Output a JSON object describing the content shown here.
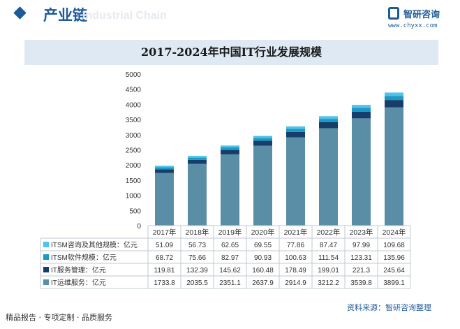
{
  "header": {
    "title": "产业链",
    "watermark": "Industrial Chain",
    "logo_name": "智研咨询",
    "logo_url": "www.chyxx.com"
  },
  "colors": {
    "brand": "#1e5a96",
    "title_band": "#dfe9f3",
    "series": [
      "#4fc3e8",
      "#1e98c6",
      "#173e6b",
      "#5a8ea6"
    ]
  },
  "chart_data": {
    "type": "bar",
    "stacked": true,
    "title": "2017-2024年中国IT行业发展规模",
    "categories": [
      "2017年",
      "2018年",
      "2019年",
      "2020年",
      "2021年",
      "2022年",
      "2023年",
      "2024年"
    ],
    "ylim": [
      0,
      5000
    ],
    "yticks": [
      0,
      500,
      1000,
      1500,
      2000,
      2500,
      3000,
      3500,
      4000,
      4500,
      5000
    ],
    "grid": false,
    "legend": "table-below",
    "series": [
      {
        "name": "ITSM咨询及其他规模：亿元",
        "values": [
          51.09,
          56.73,
          62.65,
          69.55,
          77.86,
          87.47,
          97.99,
          109.68
        ],
        "labels": [
          "51.09",
          "56.73",
          "62.65",
          "69.55",
          "77.86",
          "87.47",
          "97.99",
          "109.68"
        ]
      },
      {
        "name": "ITSM软件规模：亿元",
        "values": [
          68.72,
          75.66,
          82.97,
          90.93,
          100.63,
          111.54,
          123.31,
          135.96
        ],
        "labels": [
          "68.72",
          "75.66",
          "82.97",
          "90.93",
          "100.63",
          "111.54",
          "123.31",
          "135.96"
        ]
      },
      {
        "name": "IT服务管理：亿元",
        "values": [
          119.81,
          132.39,
          145.62,
          160.48,
          178.49,
          199.01,
          221.3,
          245.64
        ],
        "labels": [
          "119.81",
          "132.39",
          "145.62",
          "160.48",
          "178.49",
          "199.01",
          "221.3",
          "245.64"
        ]
      },
      {
        "name": "IT运维服务：亿元",
        "values": [
          1733.8,
          2035.5,
          2351.1,
          2637.9,
          2914.9,
          3212.2,
          3539.8,
          3899.1
        ],
        "labels": [
          "1733.8",
          "2035.5",
          "2351.1",
          "2637.9",
          "2914.9",
          "3212.2",
          "3539.8",
          "3899.1"
        ]
      }
    ]
  },
  "footer": {
    "left": "精品报告 · 专项定制 · 品质服务",
    "source": "资料来源：智研咨询整理"
  }
}
